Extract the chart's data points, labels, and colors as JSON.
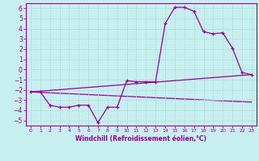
{
  "title": "",
  "xlabel": "Windchill (Refroidissement éolien,°C)",
  "background_color": "#c8eff0",
  "grid_color": "#b0dede",
  "line_color": "#990099",
  "xlim": [
    -0.5,
    23.5
  ],
  "ylim": [
    -5.5,
    6.5
  ],
  "xticks": [
    0,
    1,
    2,
    3,
    4,
    5,
    6,
    7,
    8,
    9,
    10,
    11,
    12,
    13,
    14,
    15,
    16,
    17,
    18,
    19,
    20,
    21,
    22,
    23
  ],
  "yticks": [
    -5,
    -4,
    -3,
    -2,
    -1,
    0,
    1,
    2,
    3,
    4,
    5,
    6
  ],
  "line1_x": [
    0,
    1,
    2,
    3,
    4,
    5,
    6,
    7,
    8,
    9,
    10,
    11,
    12,
    13,
    14,
    15,
    16,
    17,
    18,
    19,
    20,
    21,
    22,
    23
  ],
  "line1_y": [
    -2.2,
    -2.2,
    -3.5,
    -3.7,
    -3.7,
    -3.5,
    -3.5,
    -5.2,
    -3.7,
    -3.7,
    -1.1,
    -1.2,
    -1.2,
    -1.2,
    4.5,
    6.1,
    6.1,
    5.7,
    3.7,
    3.5,
    3.6,
    2.1,
    -0.3,
    -0.5
  ],
  "line2_x": [
    0,
    23
  ],
  "line2_y": [
    -2.2,
    -0.5
  ],
  "line3_x": [
    0,
    23
  ],
  "line3_y": [
    -2.2,
    -3.2
  ],
  "xlabel_fontsize": 5.5,
  "tick_fontsize_x": 4.5,
  "tick_fontsize_y": 5.5
}
